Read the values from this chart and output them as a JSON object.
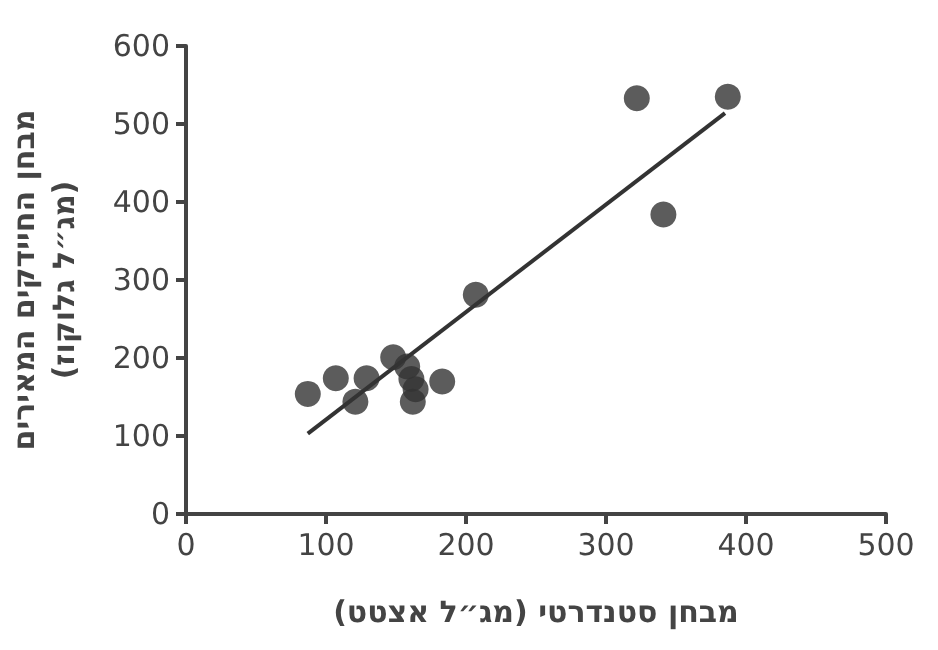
{
  "chart_data": {
    "type": "scatter",
    "xlabel": "מבחן סטנדרטי (מג״ל אצטט)",
    "ylabel": "מבחן החיידקים המאירים\n(מג״ל גלוקוז)",
    "xlim": [
      0,
      500
    ],
    "xticks": [
      0,
      100,
      200,
      300,
      400,
      500
    ],
    "ylim": [
      0,
      600
    ],
    "yticks": [
      0,
      100,
      200,
      300,
      400,
      500,
      600
    ],
    "grid": false,
    "marker": "circle",
    "series": [
      {
        "color": "#333333",
        "x": [
          87,
          107,
          121,
          129,
          148,
          158,
          161,
          164,
          162,
          183,
          207,
          322,
          341,
          387
        ],
        "values": [
          154,
          174,
          144,
          174,
          201,
          189,
          173,
          160,
          144,
          170,
          281,
          533,
          384,
          535
        ]
      },
      {
        "type": "line",
        "color": "#333333",
        "marker": "none",
        "line_style": "solid",
        "x": [
          87,
          385
        ],
        "values": [
          103,
          514
        ]
      }
    ]
  }
}
